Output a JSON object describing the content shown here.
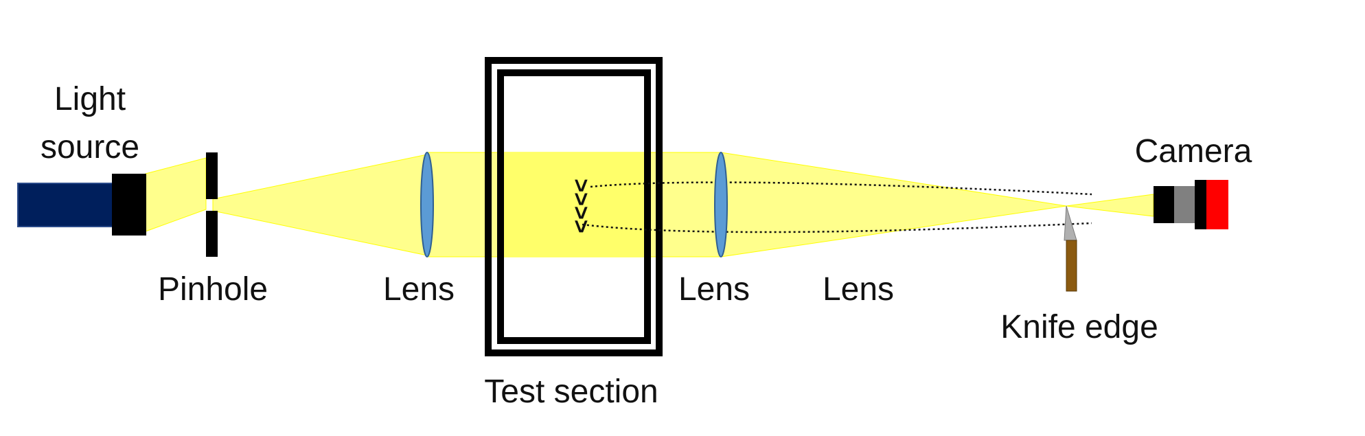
{
  "labels": {
    "light_source_line1": "Light",
    "light_source_line2": "source",
    "pinhole": "Pinhole",
    "lens_1": "Lens",
    "lens_2": "Lens",
    "lens_3": "Lens",
    "test_section": "Test section",
    "knife_edge": "Knife edge",
    "camera": "Camera"
  },
  "schlieren_marks": ">>>>",
  "colors": {
    "beam": "#ffff66",
    "light_source_body": "#001f5c",
    "lens_fill": "#5b9bd5",
    "test_section_frame": "#000000",
    "knife_blade": "#b0b0b0",
    "knife_handle": "#8b5a10",
    "camera_body": "#000000",
    "camera_middle": "#808080",
    "camera_front": "#ff0000"
  }
}
